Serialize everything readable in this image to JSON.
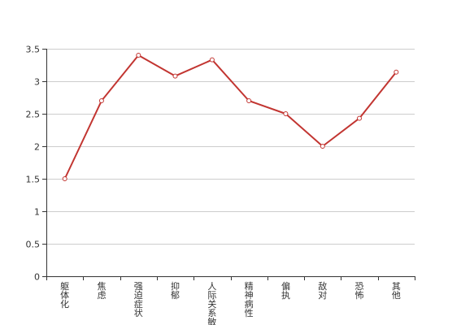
{
  "chart_data": {
    "type": "line",
    "categories": [
      "躯体化",
      "焦虑",
      "强迫症状",
      "抑郁",
      "人际关系敏感",
      "精神病性",
      "偏执",
      "敌对",
      "恐怖",
      "其他"
    ],
    "series": [
      {
        "values": [
          1.5,
          2.7,
          3.4,
          3.08,
          3.33,
          2.7,
          2.5,
          2.0,
          2.43,
          3.14
        ]
      }
    ],
    "ylim": [
      0,
      3.5
    ],
    "yticks": [
      0,
      0.5,
      1,
      1.5,
      2,
      2.5,
      3,
      3.5
    ],
    "ytick_labels": [
      "0",
      "0.5",
      "1",
      "1.5",
      "2",
      "2.5",
      "3",
      "3.5"
    ],
    "grid": true,
    "title": "",
    "xlabel": "",
    "ylabel": "",
    "colors": {
      "line": "#c23531",
      "grid": "#cccccc",
      "axis": "#333333"
    }
  }
}
